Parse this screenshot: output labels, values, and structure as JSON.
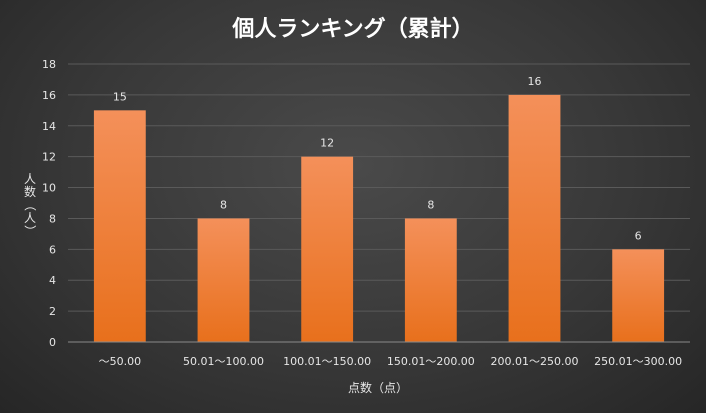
{
  "chart_data": {
    "type": "bar",
    "title": "個人ランキング（累計）",
    "xlabel": "点数（点）",
    "ylabel": "人数（人）",
    "categories": [
      "〜50.00",
      "50.01〜100.00",
      "100.01〜150.00",
      "150.01〜200.00",
      "200.01〜250.00",
      "250.01〜300.00"
    ],
    "values": [
      15,
      8,
      12,
      8,
      16,
      6
    ],
    "ylim": [
      0,
      18
    ],
    "yticks": [
      0,
      2,
      4,
      6,
      8,
      10,
      12,
      14,
      16,
      18
    ],
    "grid": true,
    "data_labels": true,
    "colors": {
      "bar_top": "#f4905a",
      "bar_bottom": "#e8701c",
      "grid": "#5a5a5a",
      "axis": "#8a8a8a",
      "text": "#e6e6e6"
    }
  }
}
